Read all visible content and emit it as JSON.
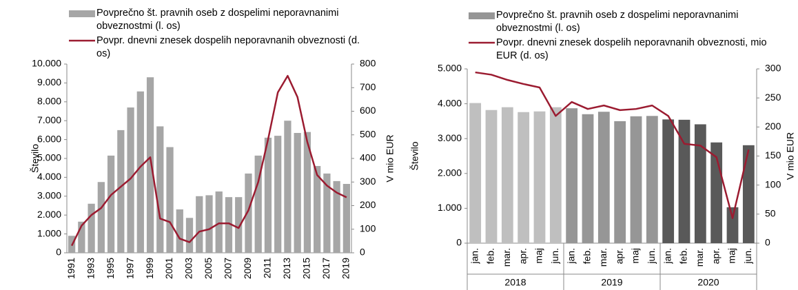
{
  "chart_data": [
    {
      "type": "combo",
      "ylabel": "Število",
      "y2label": "V mio EUR",
      "categories": [
        "1991",
        null,
        "1993",
        null,
        "1995",
        null,
        "1997",
        null,
        "1999",
        null,
        "2001",
        null,
        "2003",
        null,
        "2005",
        null,
        "2007",
        null,
        "2009",
        null,
        "2011",
        null,
        "2013",
        null,
        "2015",
        null,
        "2017",
        null,
        "2019"
      ],
      "series": [
        {
          "name": "Povprečno št. pravnih oseb z dospelimi neporavnanimi obveznostmi (l. os)",
          "type": "bar",
          "color": "#a6a6a6",
          "values": [
            900,
            1650,
            2600,
            3750,
            5150,
            6500,
            7700,
            8550,
            9300,
            6700,
            5600,
            2300,
            1850,
            3000,
            3050,
            3250,
            2950,
            2950,
            4200,
            5150,
            6100,
            6200,
            7000,
            6350,
            6400,
            4600,
            4200,
            3800,
            3650
          ]
        },
        {
          "name": "Povpr. dnevni znesek dospelih neporavnanih obveznosti (d. os)",
          "type": "line",
          "axis": "y2",
          "color": "#9b1b30",
          "values": [
            30,
            115,
            160,
            190,
            245,
            280,
            315,
            365,
            405,
            145,
            130,
            60,
            45,
            90,
            100,
            125,
            125,
            105,
            180,
            300,
            480,
            680,
            750,
            660,
            470,
            330,
            285,
            255,
            235
          ]
        }
      ],
      "ylim": [
        0,
        10000
      ],
      "yticks": [
        0,
        {
          "value": 1000,
          "label": "1.000"
        },
        {
          "value": 2000,
          "label": "2.000"
        },
        {
          "value": 3000,
          "label": "3.000"
        },
        {
          "value": 4000,
          "label": "4.000"
        },
        {
          "value": 5000,
          "label": "5.000"
        },
        {
          "value": 6000,
          "label": "6.000"
        },
        {
          "value": 7000,
          "label": "7.000"
        },
        {
          "value": 8000,
          "label": "8.000"
        },
        {
          "value": 9000,
          "label": "9.000"
        },
        {
          "value": 10000,
          "label": "10.000"
        }
      ],
      "y2lim": [
        0,
        800
      ],
      "y2ticks": [
        0,
        100,
        200,
        300,
        400,
        500,
        600,
        700,
        800
      ]
    },
    {
      "type": "combo",
      "ylabel": "Število",
      "y2label": "V mio EUR",
      "categories": [
        "jan.",
        "feb.",
        "mar.",
        "apr.",
        "maj",
        "jun.",
        "jan.",
        "feb.",
        "mar.",
        "apr.",
        "maj",
        "jun.",
        "jan.",
        "feb.",
        "mar.",
        "apr.",
        "maj",
        "jun."
      ],
      "groups": [
        {
          "label": "2018",
          "color": "#bfbfbf"
        },
        {
          "label": "2019",
          "color": "#969696"
        },
        {
          "label": "2020",
          "color": "#595959"
        }
      ],
      "series": [
        {
          "name": "Povprečno št. pravnih oseb z dospelimi neporavnanimi obveznostmi (l. os)",
          "type": "bar",
          "color": "#969696",
          "values": [
            4020,
            3820,
            3900,
            3760,
            3780,
            3900,
            3870,
            3700,
            3770,
            3500,
            3640,
            3650,
            3550,
            3540,
            3410,
            2890,
            1030,
            2810
          ]
        },
        {
          "name": "Povpr. dnevni znesek dospelih neporavnanih obveznosti, mio EUR (d. os)",
          "type": "line",
          "axis": "y2",
          "color": "#9b1b30",
          "values": [
            294,
            290,
            281,
            274,
            268,
            219,
            243,
            231,
            237,
            229,
            231,
            237,
            219,
            171,
            168,
            148,
            43,
            161
          ]
        }
      ],
      "ylim": [
        0,
        5000
      ],
      "yticks": [
        0,
        {
          "value": 1000,
          "label": "1.000"
        },
        {
          "value": 2000,
          "label": "2.000"
        },
        {
          "value": 3000,
          "label": "3.000"
        },
        {
          "value": 4000,
          "label": "4.000"
        },
        {
          "value": 5000,
          "label": "5.000"
        }
      ],
      "y2lim": [
        0,
        300
      ],
      "y2ticks": [
        0,
        50,
        100,
        150,
        200,
        250,
        300
      ]
    }
  ]
}
